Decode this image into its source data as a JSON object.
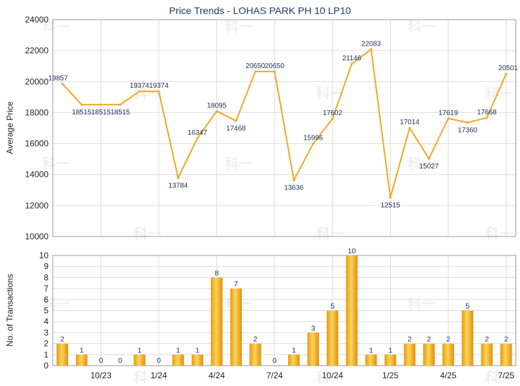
{
  "chart_data": [
    {
      "type": "line",
      "title": "Price Trends - LOHAS PARK PH 10 LP10",
      "ylabel": "Average Price",
      "ylim": [
        10000,
        24000
      ],
      "yticks": [
        10000,
        12000,
        14000,
        16000,
        18000,
        20000,
        22000,
        24000
      ],
      "grid": true,
      "color": "#f5a623",
      "values": [
        19857,
        18515,
        18515,
        18515,
        19374,
        19374,
        13784,
        16347,
        18095,
        17468,
        20650,
        20650,
        13636,
        15996,
        17602,
        21146,
        22083,
        12515,
        17014,
        15027,
        17619,
        17360,
        17668,
        20501
      ]
    },
    {
      "type": "bar",
      "ylabel": "No. of Transactions",
      "ylim": [
        0,
        10
      ],
      "yticks": [
        0,
        1,
        2,
        3,
        4,
        5,
        6,
        7,
        8,
        9,
        10
      ],
      "grid": true,
      "color": "#f2b230",
      "xticks": [
        "10/23",
        "1/24",
        "4/24",
        "7/24",
        "10/24",
        "1/25",
        "4/25",
        "7/25"
      ],
      "values": [
        2,
        1,
        0,
        0,
        1,
        0,
        1,
        1,
        8,
        7,
        2,
        0,
        1,
        3,
        5,
        10,
        1,
        1,
        2,
        2,
        2,
        5,
        2,
        2
      ]
    }
  ],
  "watermark": "科一"
}
